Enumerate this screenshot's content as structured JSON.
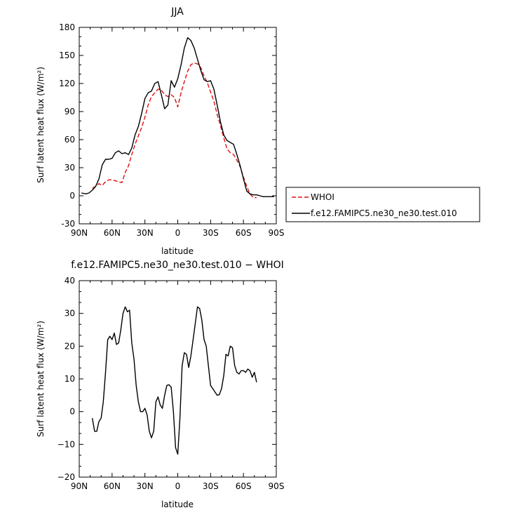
{
  "chart_data": [
    {
      "type": "line",
      "title": "JJA",
      "xlabel": "latitude",
      "ylabel": "Surf latent heat flux (W/m²)",
      "xlim": [
        90,
        -90
      ],
      "ylim": [
        -30,
        180
      ],
      "x_ticks": [
        90,
        60,
        30,
        0,
        -30,
        -60,
        -90
      ],
      "x_tick_labels": [
        "90N",
        "60N",
        "30N",
        "0",
        "30S",
        "60S",
        "90S"
      ],
      "y_ticks": [
        -30,
        0,
        30,
        60,
        90,
        120,
        150,
        180
      ],
      "y_tick_labels": [
        "-30",
        "0",
        "30",
        "60",
        "90",
        "120",
        "150",
        "180"
      ],
      "grid": false,
      "legend_position": "right",
      "series": [
        {
          "name": "WHOI",
          "color": "#dd1111",
          "dash": "dashed",
          "x": [
            78,
            75,
            72,
            69,
            66,
            63,
            60,
            57,
            54,
            51,
            48,
            45,
            42,
            39,
            36,
            33,
            30,
            27,
            24,
            21,
            18,
            15,
            12,
            9,
            6,
            3,
            0,
            -3,
            -6,
            -9,
            -12,
            -15,
            -18,
            -21,
            -24,
            -27,
            -30,
            -33,
            -36,
            -39,
            -42,
            -45,
            -48,
            -51,
            -54,
            -57,
            -60,
            -63,
            -66,
            -69,
            -72
          ],
          "y": [
            8,
            10,
            13,
            11,
            15,
            17,
            17,
            16,
            15,
            14,
            25,
            32,
            44,
            55,
            64,
            73,
            84,
            97,
            106,
            110,
            114,
            113,
            108,
            106,
            108,
            105,
            95,
            110,
            122,
            133,
            140,
            142,
            141,
            137,
            128,
            121,
            111,
            101,
            87,
            75,
            62,
            50,
            46,
            44,
            38,
            31,
            20,
            10,
            2,
            -2,
            -2
          ]
        },
        {
          "name": "f.e12.FAMIPC5.ne30_ne30.test.010",
          "color": "#000000",
          "dash": "solid",
          "x": [
            88,
            84,
            81,
            78,
            75,
            72,
            69,
            66,
            63,
            60,
            57,
            54,
            51,
            48,
            45,
            42,
            39,
            36,
            33,
            30,
            27,
            24,
            21,
            18,
            15,
            12,
            9,
            6,
            3,
            0,
            -3,
            -6,
            -9,
            -12,
            -15,
            -18,
            -21,
            -24,
            -27,
            -30,
            -33,
            -36,
            -39,
            -42,
            -45,
            -48,
            -51,
            -54,
            -57,
            -60,
            -63,
            -66,
            -69,
            -72,
            -75,
            -78,
            -81,
            -84,
            -88
          ],
          "y": [
            3,
            2,
            3,
            6,
            10,
            18,
            33,
            39,
            39,
            40,
            46,
            48,
            45,
            46,
            44,
            51,
            65,
            74,
            88,
            104,
            110,
            112,
            120,
            122,
            108,
            93,
            97,
            123,
            116,
            125,
            140,
            158,
            169,
            166,
            158,
            146,
            134,
            124,
            122,
            123,
            114,
            97,
            79,
            65,
            59,
            57,
            55,
            44,
            32,
            18,
            5,
            2,
            1,
            1,
            0,
            -1,
            -1,
            -1,
            -1
          ]
        }
      ]
    },
    {
      "type": "line",
      "title": "f.e12.FAMIPC5.ne30_ne30.test.010 − WHOI",
      "xlabel": "latitude",
      "ylabel": "Surf latent heat flux (W/m²)",
      "xlim": [
        90,
        -90
      ],
      "ylim": [
        -20,
        40
      ],
      "x_ticks": [
        90,
        60,
        30,
        0,
        -30,
        -60,
        -90
      ],
      "x_tick_labels": [
        "90N",
        "60N",
        "30N",
        "0",
        "30S",
        "60S",
        "90S"
      ],
      "y_ticks": [
        -20,
        -10,
        0,
        10,
        20,
        30,
        40
      ],
      "y_tick_labels": [
        "−20",
        "−10",
        "0",
        "10",
        "20",
        "30",
        "40"
      ],
      "grid": false,
      "series": [
        {
          "color": "#000000",
          "dash": "solid",
          "x": [
            78,
            76,
            74,
            72,
            70,
            68,
            66,
            64,
            62,
            60,
            58,
            56,
            54,
            52,
            50,
            48,
            46,
            44,
            42,
            40,
            38,
            36,
            34,
            32,
            30,
            28,
            26,
            24,
            22,
            20,
            18,
            16,
            14,
            12,
            10,
            8,
            6,
            4,
            2,
            0,
            -2,
            -4,
            -6,
            -8,
            -10,
            -12,
            -14,
            -16,
            -18,
            -20,
            -22,
            -24,
            -26,
            -28,
            -30,
            -32,
            -34,
            -36,
            -38,
            -40,
            -42,
            -44,
            -46,
            -48,
            -50,
            -52,
            -54,
            -56,
            -58,
            -60,
            -62,
            -64,
            -66,
            -68,
            -70,
            -72
          ],
          "y": [
            -2,
            -6,
            -6,
            -3,
            -2,
            3,
            12,
            22,
            23,
            22,
            24,
            20.5,
            21,
            25,
            30,
            32,
            30.5,
            31,
            21,
            16,
            8,
            3,
            0,
            0,
            1,
            -1,
            -6,
            -8,
            -6,
            3,
            4.5,
            2,
            1,
            5,
            8,
            8.2,
            7.5,
            0,
            -11,
            -13,
            -2,
            14,
            18,
            17.5,
            13.5,
            17,
            22,
            27,
            32,
            31.5,
            28,
            22,
            20,
            14,
            8,
            7,
            6,
            5,
            5.2,
            7,
            11,
            17.5,
            17,
            20,
            19.5,
            14,
            12,
            11.5,
            12.5,
            12.5,
            12,
            13,
            12.5,
            10.5,
            12,
            9
          ]
        }
      ]
    }
  ]
}
